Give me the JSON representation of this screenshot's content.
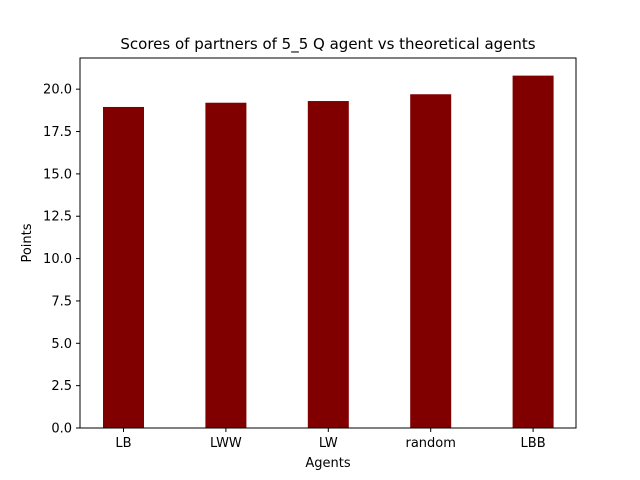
{
  "chart_data": {
    "type": "bar",
    "title": "Scores of partners of 5_5 Q agent vs theoretical agents",
    "xlabel": "Agents",
    "ylabel": "Points",
    "categories": [
      "LB",
      "LWW",
      "LW",
      "random",
      "LBB"
    ],
    "values": [
      18.95,
      19.2,
      19.3,
      19.7,
      20.8
    ],
    "ylim": [
      0,
      21.84
    ],
    "yticks": [
      "0.0",
      "2.5",
      "5.0",
      "7.5",
      "10.0",
      "12.5",
      "15.0",
      "17.5",
      "20.0"
    ],
    "bar_color": "#800000",
    "grid": false
  }
}
